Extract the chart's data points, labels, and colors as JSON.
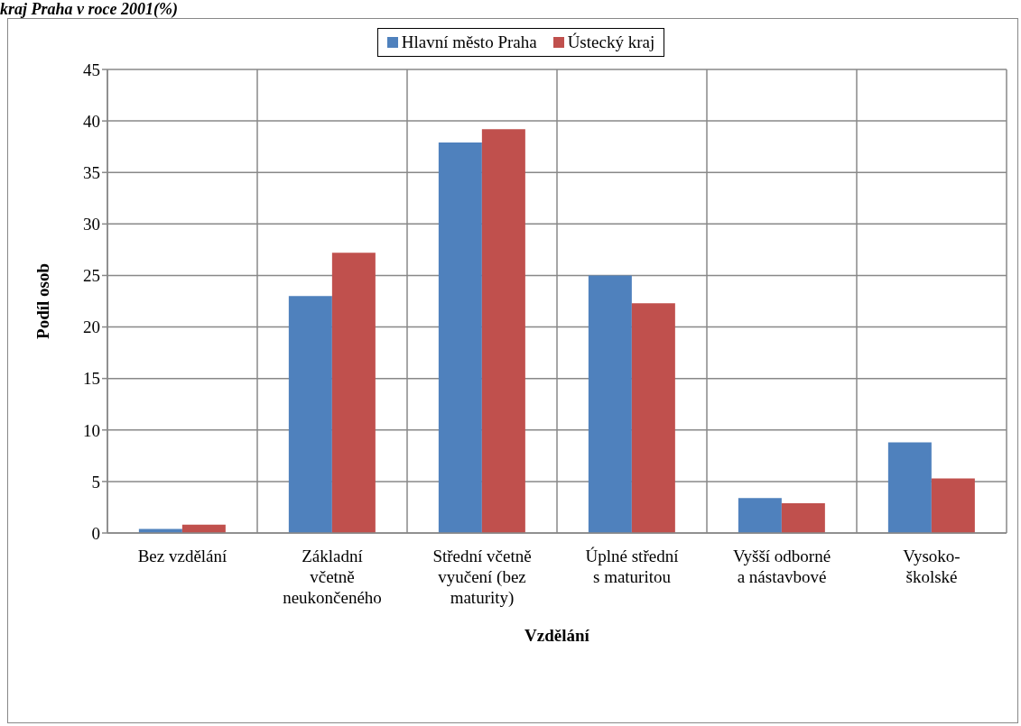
{
  "chart_data": {
    "type": "bar",
    "title": "kraj Praha v roce 2001(%)",
    "xlabel": "Vzdělání",
    "ylabel": "Podíl osob",
    "categories": [
      "Bez vzdělání",
      "Základní včetně neukončeného",
      "Střední včetně vyučení (bez maturity)",
      "Úplné střední s maturitou",
      "Vyšší odborné a nástavbové",
      "Vysoko- školské"
    ],
    "series": [
      {
        "name": "Hlavní město Praha",
        "color": "#4f81bd",
        "values": [
          0.4,
          23.0,
          37.9,
          25.0,
          3.4,
          8.8
        ]
      },
      {
        "name": "Ústecký kraj",
        "color": "#c0504d",
        "values": [
          0.8,
          27.2,
          39.2,
          22.3,
          2.9,
          5.3
        ]
      }
    ],
    "ylim": [
      0,
      45
    ],
    "yticks": [
      0,
      5,
      10,
      15,
      20,
      25,
      30,
      35,
      40,
      45
    ],
    "grid": true,
    "legend": "top"
  }
}
